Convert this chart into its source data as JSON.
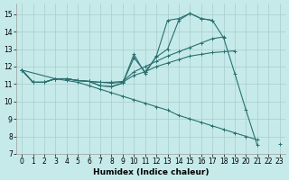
{
  "xlabel": "Humidex (Indice chaleur)",
  "bg_color": "#c6eaea",
  "grid_color": "#a8cccc",
  "line_color": "#2a7070",
  "xlim": [
    -0.5,
    23.5
  ],
  "ylim": [
    7,
    15.6
  ],
  "yticks": [
    7,
    8,
    9,
    10,
    11,
    12,
    13,
    14,
    15
  ],
  "xticks": [
    0,
    1,
    2,
    3,
    4,
    5,
    6,
    7,
    8,
    9,
    10,
    11,
    12,
    13,
    14,
    15,
    16,
    17,
    18,
    19,
    20,
    21,
    22,
    23
  ],
  "curves": [
    {
      "x": [
        0,
        1,
        2,
        3,
        4,
        5,
        6,
        7,
        8,
        9,
        10,
        11,
        12,
        13,
        14,
        15,
        16,
        17,
        18,
        19,
        20,
        21,
        22,
        23
      ],
      "y": [
        11.8,
        11.1,
        11.1,
        11.3,
        11.3,
        11.2,
        11.15,
        10.9,
        10.85,
        11.05,
        12.7,
        11.6,
        12.6,
        14.65,
        14.75,
        15.05,
        14.75,
        14.65,
        null,
        null,
        null,
        null,
        null,
        null
      ]
    },
    {
      "x": [
        0,
        1,
        2,
        3,
        4,
        5,
        6,
        7,
        8,
        9,
        10,
        11,
        12,
        13,
        14,
        15,
        16,
        17,
        18,
        19,
        20,
        21
      ],
      "y": [
        11.8,
        11.1,
        11.1,
        11.3,
        11.3,
        11.2,
        11.15,
        10.9,
        10.85,
        11.05,
        12.5,
        11.7,
        12.55,
        13.0,
        14.65,
        15.05,
        14.75,
        14.65,
        13.65,
        11.6,
        9.5,
        7.5
      ]
    },
    {
      "x": [
        0,
        1,
        2,
        3,
        4,
        5,
        6,
        7,
        8,
        9,
        10,
        11,
        12,
        13,
        14,
        15,
        16,
        17,
        18
      ],
      "y": [
        11.8,
        11.1,
        11.1,
        11.3,
        11.3,
        11.2,
        11.15,
        11.1,
        11.1,
        11.15,
        11.7,
        12.0,
        12.3,
        12.6,
        12.85,
        13.1,
        13.35,
        13.6,
        13.7
      ]
    },
    {
      "x": [
        0,
        1,
        2,
        3,
        4,
        5,
        6,
        7,
        8,
        9,
        10,
        11,
        12,
        13,
        14,
        15,
        16,
        17,
        18,
        19
      ],
      "y": [
        11.8,
        11.1,
        11.1,
        11.3,
        11.3,
        11.2,
        11.15,
        11.1,
        11.05,
        11.1,
        11.5,
        11.7,
        12.0,
        12.2,
        12.4,
        12.6,
        12.7,
        12.8,
        12.85,
        12.9
      ]
    },
    {
      "x": [
        0,
        3,
        4,
        5,
        6,
        7,
        8,
        9,
        10,
        11,
        12,
        13,
        14,
        15,
        16,
        17,
        18,
        19,
        20,
        21,
        22,
        23
      ],
      "y": [
        11.8,
        11.3,
        11.2,
        11.1,
        10.9,
        10.7,
        10.5,
        10.3,
        10.1,
        9.9,
        9.7,
        9.5,
        9.2,
        9.0,
        8.8,
        8.6,
        8.4,
        8.2,
        8.0,
        7.8,
        null,
        7.55
      ]
    }
  ]
}
